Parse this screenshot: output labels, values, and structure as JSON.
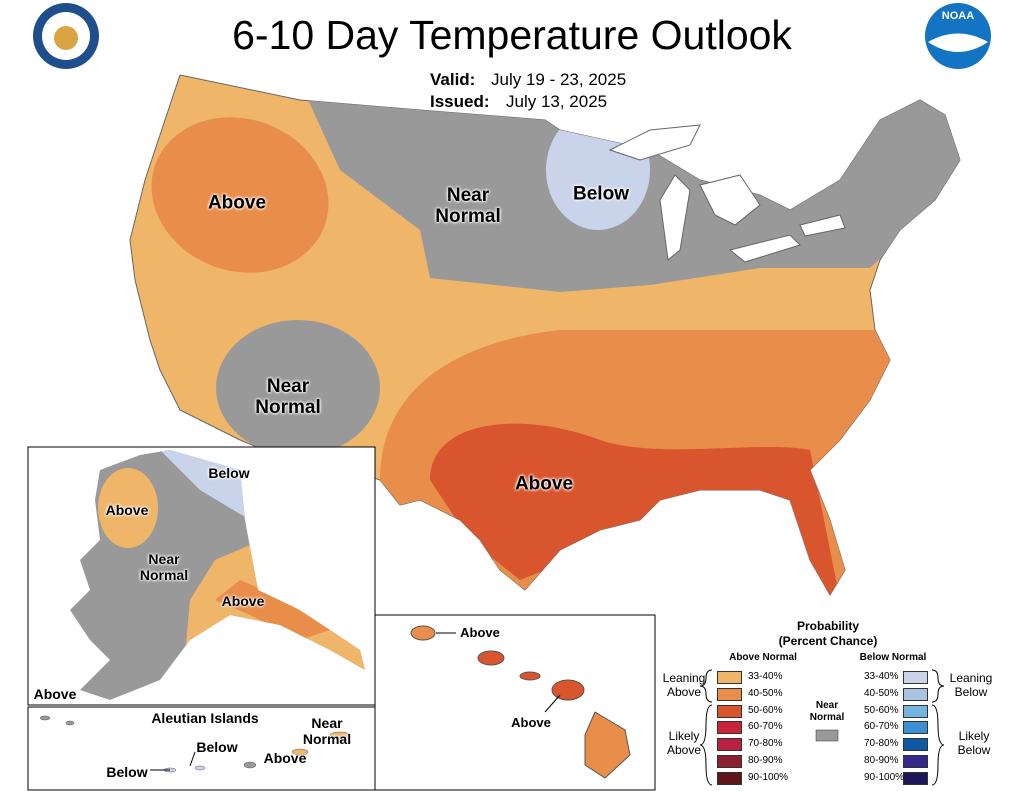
{
  "header": {
    "title": "6-10 Day Temperature Outlook",
    "valid_label": "Valid:",
    "valid": "July 19 - 23, 2025",
    "issued_label": "Issued:",
    "issued": "July 13, 2025",
    "noaa_logo": "NOAA"
  },
  "conus_labels": [
    "Above",
    "Near Normal",
    "Below",
    "Near Normal",
    "Above"
  ],
  "alaska_labels": [
    "Below",
    "Above",
    "Near Normal",
    "Above",
    "Above"
  ],
  "aleutian": {
    "title": "Aleutian Islands",
    "labels": [
      "Below",
      "Below",
      "Above",
      "Near Normal"
    ]
  },
  "hawaii_labels": [
    "Above",
    "Above"
  ],
  "legend": {
    "title": "Probability",
    "subtitle": "(Percent Chance)",
    "above": {
      "heading": "Above Normal",
      "leaning": "Leaning Above",
      "likely": "Likely Above",
      "items": [
        {
          "range": "33-40%",
          "color": "#efb66a"
        },
        {
          "range": "40-50%",
          "color": "#e98d4a"
        },
        {
          "range": "50-60%",
          "color": "#d8552d"
        },
        {
          "range": "60-70%",
          "color": "#c9243a"
        },
        {
          "range": "70-80%",
          "color": "#b8213f"
        },
        {
          "range": "80-90%",
          "color": "#8c2030"
        },
        {
          "range": "90-100%",
          "color": "#5e1619"
        }
      ]
    },
    "near": {
      "heading": "Near Normal",
      "color": "#999999"
    },
    "below": {
      "heading": "Below Normal",
      "leaning": "Leaning Below",
      "likely": "Likely Below",
      "items": [
        {
          "range": "33-40%",
          "color": "#c9d4ea"
        },
        {
          "range": "40-50%",
          "color": "#a8c4e0"
        },
        {
          "range": "50-60%",
          "color": "#76b4e0"
        },
        {
          "range": "60-70%",
          "color": "#3a90d0"
        },
        {
          "range": "70-80%",
          "color": "#0e59a4"
        },
        {
          "range": "80-90%",
          "color": "#352889"
        },
        {
          "range": "90-100%",
          "color": "#1e1656"
        }
      ]
    }
  }
}
